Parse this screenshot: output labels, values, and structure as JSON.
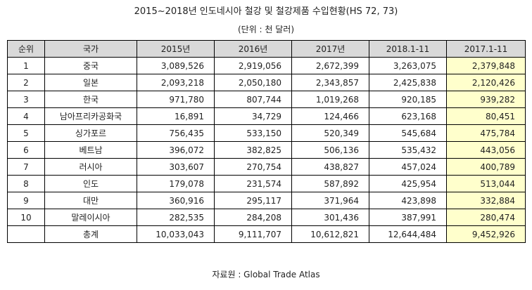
{
  "title": "2015~2018년 인도네시아 철강 및 철강제품 수입현황(HS 72, 73)",
  "unit": "(단위 : 천 달러)",
  "headers": [
    "순위",
    "국가",
    "2015년",
    "2016년",
    "2017년",
    "2018.1-11",
    "2017.1-11"
  ],
  "rows": [
    {
      "rank": "1",
      "country": "중국",
      "y2015": "3,089,526",
      "y2016": "2,919,056",
      "y2017": "2,672,399",
      "y2018_1_11": "3,263,075",
      "y2017_1_11": "2,379,848"
    },
    {
      "rank": "2",
      "country": "일본",
      "y2015": "2,093,218",
      "y2016": "2,050,180",
      "y2017": "2,343,857",
      "y2018_1_11": "2,425,838",
      "y2017_1_11": "2,120,426"
    },
    {
      "rank": "3",
      "country": "한국",
      "y2015": "971,780",
      "y2016": "807,744",
      "y2017": "1,019,268",
      "y2018_1_11": "920,185",
      "y2017_1_11": "939,282"
    },
    {
      "rank": "4",
      "country": "남아프리카공화국",
      "y2015": "16,891",
      "y2016": "34,729",
      "y2017": "124,466",
      "y2018_1_11": "623,168",
      "y2017_1_11": "80,451"
    },
    {
      "rank": "5",
      "country": "싱가포르",
      "y2015": "756,435",
      "y2016": "533,150",
      "y2017": "520,349",
      "y2018_1_11": "545,684",
      "y2017_1_11": "475,784"
    },
    {
      "rank": "6",
      "country": "베트남",
      "y2015": "396,072",
      "y2016": "382,825",
      "y2017": "506,136",
      "y2018_1_11": "535,432",
      "y2017_1_11": "443,056"
    },
    {
      "rank": "7",
      "country": "러시아",
      "y2015": "303,607",
      "y2016": "270,754",
      "y2017": "438,827",
      "y2018_1_11": "457,024",
      "y2017_1_11": "400,789"
    },
    {
      "rank": "8",
      "country": "인도",
      "y2015": "179,078",
      "y2016": "231,574",
      "y2017": "587,892",
      "y2018_1_11": "425,954",
      "y2017_1_11": "513,044"
    },
    {
      "rank": "9",
      "country": "대만",
      "y2015": "360,916",
      "y2016": "295,117",
      "y2017": "371,964",
      "y2018_1_11": "423,898",
      "y2017_1_11": "332,884"
    },
    {
      "rank": "10",
      "country": "말레이시아",
      "y2015": "282,535",
      "y2016": "284,208",
      "y2017": "301,436",
      "y2018_1_11": "387,991",
      "y2017_1_11": "280,474"
    }
  ],
  "total": {
    "label": "총계",
    "y2015": "10,033,043",
    "y2016": "9,111,707",
    "y2017": "10,612,821",
    "y2018_1_11": "12,644,484",
    "y2017_1_11": "9,452,926"
  },
  "source": "자료원 : Global Trade Atlas",
  "colors": {
    "header_bg": "#d9d9d9",
    "highlight_bg": "#ffffcc"
  }
}
